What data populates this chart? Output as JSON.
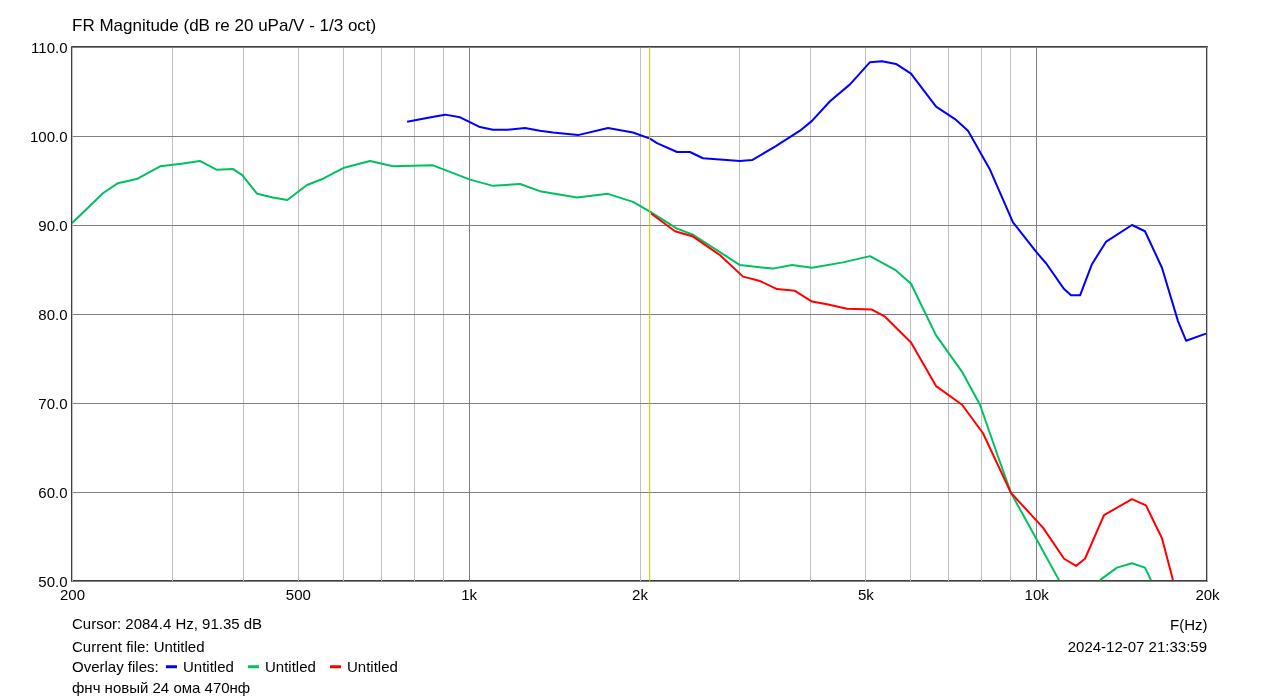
{
  "chart_data": {
    "type": "line",
    "title": "FR Magnitude (dB re 20 uPa/V - 1/3 oct)",
    "xlabel": "F(Hz)",
    "legend_title": "Overlay files:",
    "legend": "bottom left",
    "log": "x",
    "grid": true,
    "xlim": [
      200,
      20000
    ],
    "xticks": [
      200,
      {
        "value": 300,
        "label": null
      },
      {
        "value": 400,
        "label": null
      },
      500,
      {
        "value": 600,
        "label": null
      },
      {
        "value": 700,
        "label": null
      },
      {
        "value": 800,
        "label": null
      },
      {
        "value": 900,
        "label": null
      },
      {
        "value": 1000,
        "label": "1k"
      },
      {
        "value": 2000,
        "label": "2k"
      },
      {
        "value": 3000,
        "label": null
      },
      {
        "value": 4000,
        "label": null
      },
      {
        "value": 5000,
        "label": "5k"
      },
      {
        "value": 6000,
        "label": null
      },
      {
        "value": 7000,
        "label": null
      },
      {
        "value": 8000,
        "label": null
      },
      {
        "value": 9000,
        "label": null
      },
      {
        "value": 10000,
        "label": "10k"
      },
      {
        "value": 20000,
        "label": "20k"
      }
    ],
    "ylim": [
      50,
      110
    ],
    "yticks": [
      {
        "value": 50,
        "label": "50.0"
      },
      {
        "value": 60,
        "label": "60.0"
      },
      {
        "value": 70,
        "label": "70.0"
      },
      {
        "value": 80,
        "label": "80.0"
      },
      {
        "value": 90,
        "label": "90.0"
      },
      {
        "value": 100,
        "label": "100.0"
      },
      {
        "value": 110,
        "label": "110.0"
      }
    ],
    "series": [
      {
        "name": "Untitled",
        "color": "#0000ff",
        "x": [
          779,
          872,
          909,
          966,
          1047,
          1104,
          1168,
          1257,
          1335,
          1408,
          1558,
          1760,
          1948,
          2087,
          2147,
          2329,
          2454,
          2588,
          3006,
          3158,
          3466,
          3836,
          4027,
          4332,
          4698,
          5096,
          5350,
          5662,
          6018,
          6662,
          7194,
          7584,
          8294,
          9102,
          9994,
          10410,
          11200,
          11520,
          11950,
          12540,
          13270,
          14750,
          15550,
          16660,
          17780,
          18370,
          19920
        ],
        "values": [
          101.6,
          102.2,
          102.4,
          102.1,
          101.0,
          100.7,
          100.7,
          100.9,
          100.6,
          100.4,
          100.1,
          100.9,
          100.4,
          99.7,
          99.2,
          98.2,
          98.2,
          97.5,
          97.2,
          97.3,
          98.8,
          100.6,
          101.7,
          103.9,
          105.8,
          108.3,
          108.4,
          108.1,
          107.0,
          103.3,
          101.9,
          100.6,
          96.2,
          90.3,
          87.0,
          85.7,
          82.8,
          82.1,
          82.1,
          85.6,
          88.1,
          90.0,
          89.3,
          85.2,
          79.2,
          77.0,
          77.8
        ]
      },
      {
        "name": "Untitled",
        "color": "#00c060",
        "x": [
          200,
          227,
          241,
          261,
          286,
          314,
          336,
          360,
          384,
          399,
          424,
          452,
          479,
          519,
          554,
          601,
          670,
          736,
          865,
          1006,
          1104,
          1232,
          1335,
          1552,
          1760,
          1948,
          2087,
          2329,
          2486,
          3006,
          3438,
          3714,
          4027,
          4568,
          5096,
          5662,
          6018,
          6662,
          7403,
          7962,
          8532,
          9028,
          9994,
          10970,
          11950,
          12950,
          13880,
          14750,
          15550,
          15930
        ],
        "values": [
          90.2,
          93.6,
          94.7,
          95.2,
          96.6,
          96.9,
          97.2,
          96.2,
          96.3,
          95.6,
          93.5,
          93.1,
          92.8,
          94.5,
          95.2,
          96.4,
          97.2,
          96.6,
          96.7,
          95.1,
          94.4,
          94.6,
          93.8,
          93.1,
          93.5,
          92.6,
          91.5,
          89.6,
          88.9,
          85.5,
          85.1,
          85.5,
          85.2,
          85.8,
          86.5,
          84.9,
          83.4,
          77.6,
          73.5,
          69.8,
          64.3,
          59.9,
          54.8,
          50.1,
          null,
          50.1,
          51.5,
          52.0,
          51.5,
          50.1
        ]
      },
      {
        "name": "Untitled",
        "color": "#ff0000",
        "x": [
          2096,
          2310,
          2486,
          2774,
          3044,
          3262,
          3494,
          3758,
          4027,
          4280,
          4642,
          5136,
          5416,
          6018,
          6662,
          7403,
          8060,
          9028,
          10280,
          11200,
          11760,
          12190,
          13170,
          14750,
          15610,
          16660,
          17420
        ],
        "values": [
          91.3,
          89.3,
          88.7,
          86.6,
          84.2,
          83.7,
          82.8,
          82.6,
          81.4,
          81.1,
          80.6,
          80.5,
          79.7,
          76.8,
          71.9,
          69.8,
          66.6,
          59.9,
          56.0,
          52.5,
          51.7,
          52.5,
          57.4,
          59.2,
          58.5,
          54.8,
          50.1
        ]
      }
    ],
    "ref_lines": [
      {
        "axis": "x",
        "value": 2084.4,
        "color": "#c8c800"
      }
    ],
    "annotations": [
      "Cursor: 2084.4 Hz, 91.35 dB",
      "Current file: Untitled",
      "2024-12-07  21:33:59",
      "фнч новый 24 ома 470нф"
    ]
  }
}
